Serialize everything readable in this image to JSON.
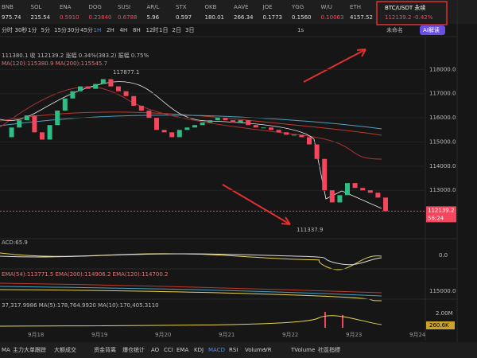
{
  "tickers": [
    {
      "symbol": "BNB",
      "price": "975.74"
    },
    {
      "symbol": "SOL",
      "price": "215.54"
    },
    {
      "symbol": "ENA",
      "price": "0.5910"
    },
    {
      "symbol": "DOG",
      "price": "0.23840"
    },
    {
      "symbol": "SUSI",
      "price": "0.6788"
    },
    {
      "symbol": "AR/L",
      "price": "5.96"
    },
    {
      "symbol": "STX",
      "price": "0.597"
    },
    {
      "symbol": "OKB",
      "price": "180.01"
    },
    {
      "symbol": "AAVE",
      "price": "266.34"
    },
    {
      "symbol": "JOE",
      "price": "0.1773"
    },
    {
      "symbol": "YGG",
      "price": "0.1560"
    },
    {
      "symbol": "W/U",
      "price": "0.10063"
    },
    {
      "symbol": "ETH",
      "price": "4157.52"
    }
  ],
  "header": {
    "pair": "BTC/USDT 永续",
    "quote": "112139.2 -0.42%"
  },
  "timeframes": [
    "分时",
    "30秒",
    "1分",
    "5分",
    "15分",
    "30分",
    "45分",
    "1H",
    "2H",
    "4H",
    "8H",
    "12时",
    "1日",
    "2日",
    "3日"
  ],
  "toolbar": {
    "speed": "1s",
    "layout": "未命名",
    "ai": "AI解读"
  },
  "chart_data": {
    "type": "candlestick",
    "info": "111380.1 收 112139.2 涨幅 0.34%(383.2) 振幅 0.75%",
    "ma_legend": "MA(120):115380.9 MA(200):115545.7",
    "high_label": "117877.1",
    "low_label": "111337.9",
    "closes": [
      115200,
      115600,
      115900,
      116100,
      115400,
      115100,
      115700,
      116300,
      116800,
      117100,
      117300,
      117200,
      117400,
      117600,
      117300,
      117100,
      116900,
      116500,
      116300,
      116000,
      115500,
      115400,
      115200,
      115500,
      115600,
      115700,
      115800,
      115900,
      116000,
      115900,
      115800,
      115900,
      115700,
      115600,
      115600,
      115500,
      115400,
      115300,
      115300,
      115200,
      114900,
      114300,
      113000,
      112500,
      112800,
      113300,
      113100,
      113000,
      112900,
      112700,
      112139.2
    ],
    "ylim": [
      111000,
      118900
    ],
    "yticks": [
      {
        "value": 118000,
        "label": "118000.0"
      },
      {
        "value": 117000,
        "label": "117000.0"
      },
      {
        "value": 116000,
        "label": "116000.0"
      },
      {
        "value": 115000,
        "label": "115000.0"
      },
      {
        "value": 114000,
        "label": "114000.0"
      },
      {
        "value": 113000,
        "label": "113000.0"
      }
    ],
    "last_price_label": "112139.2",
    "countdown": "56:24",
    "dates": [
      "9月18",
      "9月19",
      "9月20",
      "9月21",
      "9月22",
      "9月23",
      "9月24"
    ],
    "macd_label": "ACD:65.9",
    "macd_tick": "0.0",
    "ema_legend": "EMA(54):113771.5 EMA(200):114906.2 EMA(120):114700.2",
    "ema_tick": "115000.0",
    "volume_legend": "37,317.9986 MA(5):178,764.9920 MA(10):170,405.3110",
    "volume_tick": "2.00M",
    "volume_last": "260.6K"
  },
  "indicators": [
    "MA",
    "主力大单跟踪",
    "大额成交",
    "资金背离",
    "爆仓统计",
    "AO",
    "CCI",
    "EMA",
    "KDJ",
    "MACD",
    "RSI",
    "Volume",
    "VR",
    "TVolume",
    "社區指標"
  ]
}
